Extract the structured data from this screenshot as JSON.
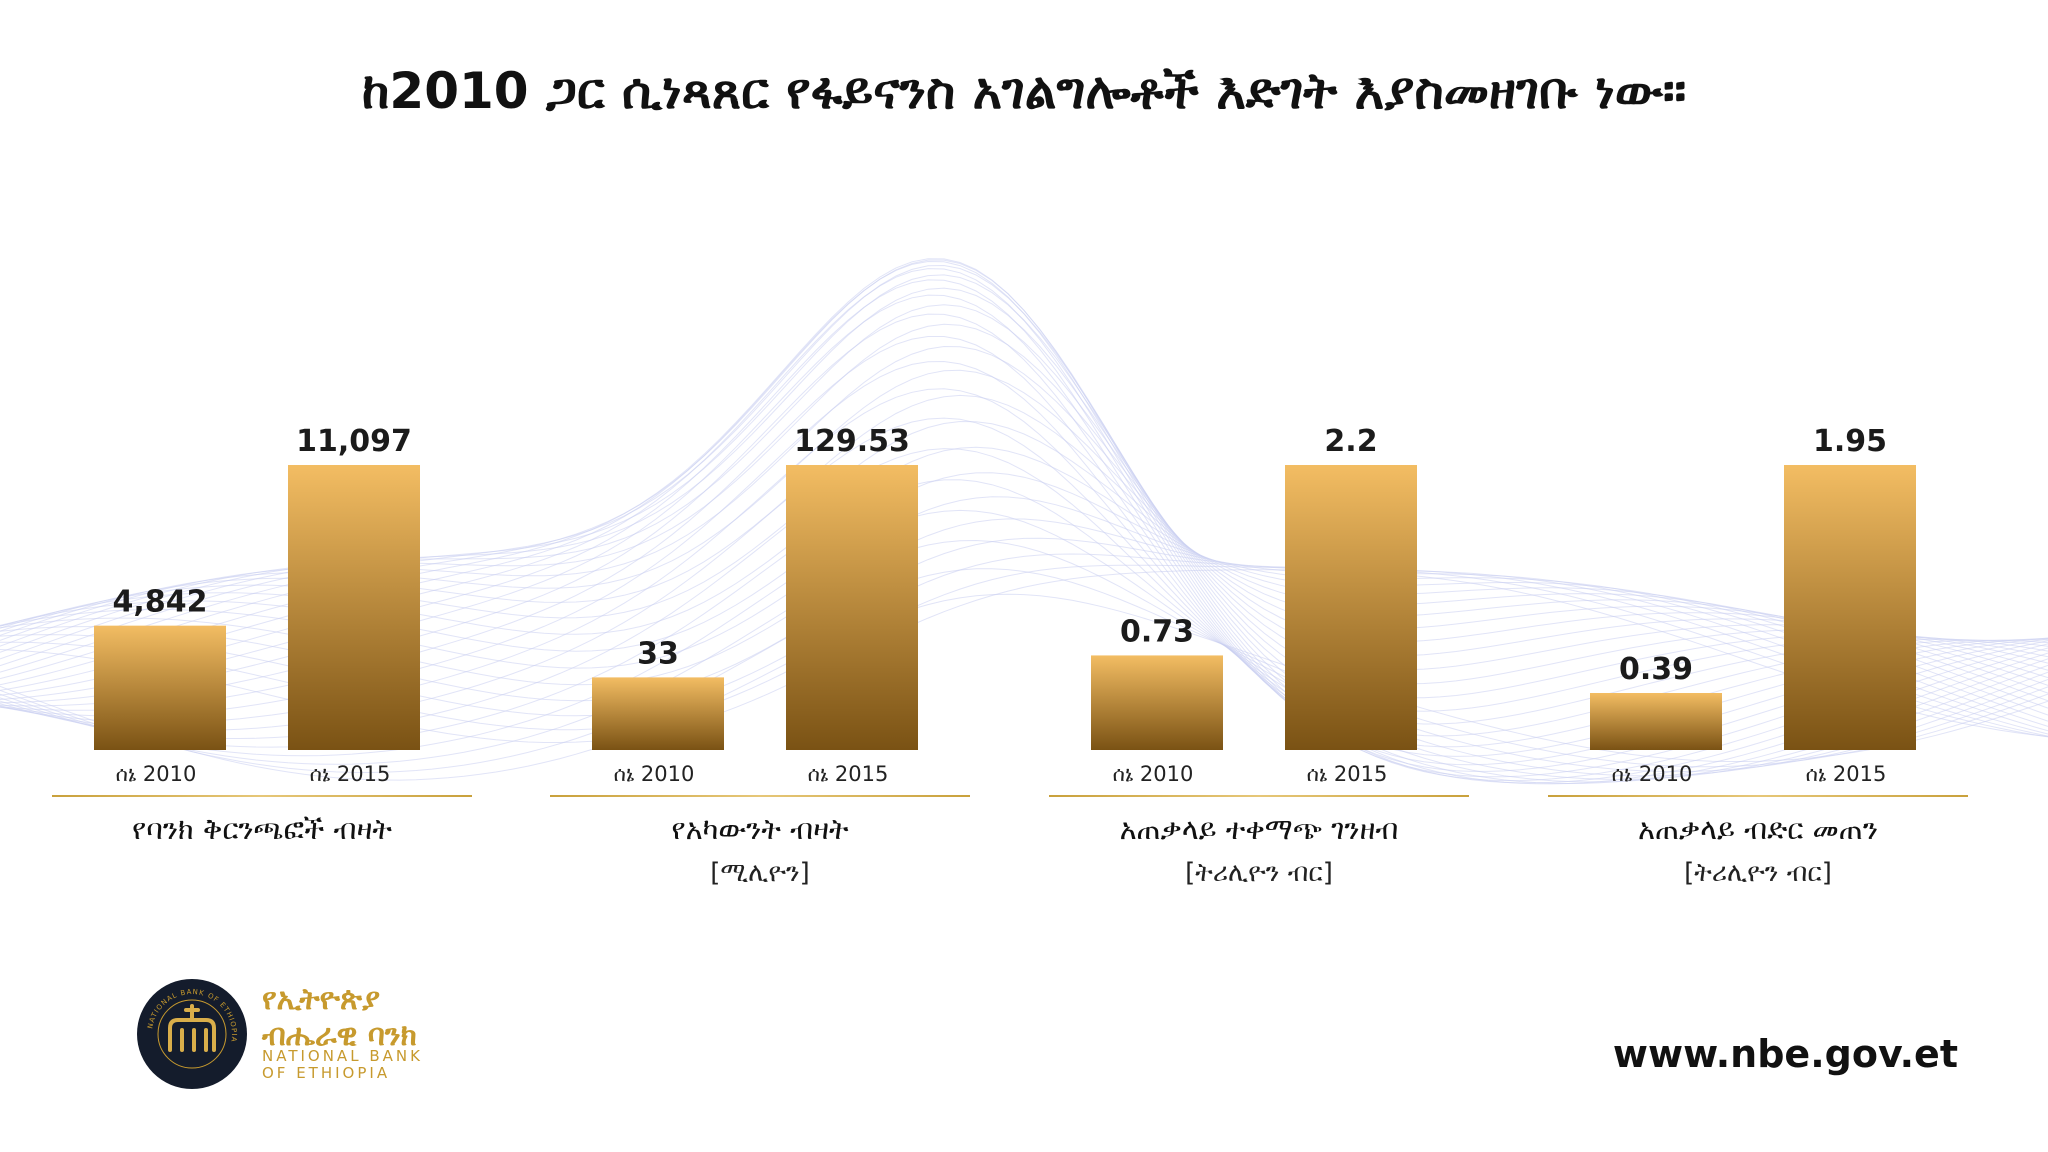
{
  "title": "ከ2010 ጋር ሲነጻጸር የፋይናንስ አገልግሎቶች እድገት እያስመዘገቡ ነው።",
  "colors": {
    "bar_top": "#f3bd63",
    "bar_bottom": "#7a5214",
    "divider": "#d4ad55",
    "brand_gold": "#c79a2e",
    "logo_bg": "#141c2c"
  },
  "chart_data": [
    {
      "type": "bar",
      "title": "የባንክ ቅርንጫፎች ብዛት",
      "unit": "",
      "categories": [
        "ሰኔ 2010",
        "ሰኔ 2015"
      ],
      "values": [
        4842,
        11097
      ],
      "value_labels": [
        "4,842",
        "11,097"
      ],
      "ylim": [
        0,
        11097
      ]
    },
    {
      "type": "bar",
      "title": "የአካውንት ብዛት",
      "unit": "[ሚሊዮን]",
      "categories": [
        "ሰኔ 2010",
        "ሰኔ 2015"
      ],
      "values": [
        33,
        129.53
      ],
      "value_labels": [
        "33",
        "129.53"
      ],
      "ylim": [
        0,
        129.53
      ]
    },
    {
      "type": "bar",
      "title": "አጠቃላይ ተቀማጭ ገንዘብ",
      "unit": "[ትሪሊዮን ብር]",
      "categories": [
        "ሰኔ 2010",
        "ሰኔ 2015"
      ],
      "values": [
        0.73,
        2.2
      ],
      "value_labels": [
        "0.73",
        "2.2"
      ],
      "ylim": [
        0,
        2.2
      ]
    },
    {
      "type": "bar",
      "title": "አጠቃላይ ብድር መጠን",
      "unit": "[ትሪሊዮን ብር]",
      "categories": [
        "ሰኔ 2010",
        "ሰኔ 2015"
      ],
      "values": [
        0.39,
        1.95
      ],
      "value_labels": [
        "0.39",
        "1.95"
      ],
      "ylim": [
        0,
        1.95
      ]
    }
  ],
  "footer": {
    "bank_name_am_line1": "የኢትዮጵያ",
    "bank_name_am_line2": "ብሔራዊ ባንክ",
    "bank_name_en_line1": "NATIONAL BANK",
    "bank_name_en_line2": "OF ETHIOPIA",
    "logo_ring_text": "NATIONAL BANK OF ETHIOPIA",
    "website": "www.nbe.gov.et"
  }
}
